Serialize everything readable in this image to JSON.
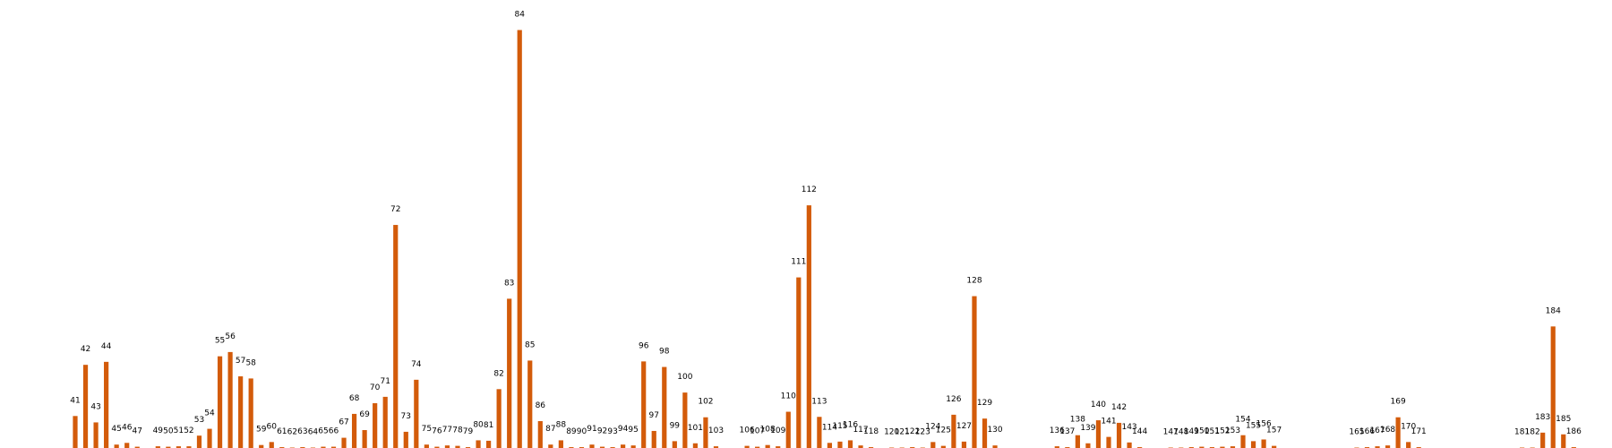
{
  "colors": {
    "bar": "#d35b0a",
    "background": "#ffffff"
  },
  "chart_data": {
    "type": "bar",
    "title": "",
    "xlabel": "",
    "ylabel": "",
    "grid": false,
    "legend": "none",
    "x": [
      41,
      42,
      43,
      44,
      45,
      46,
      47,
      49,
      50,
      51,
      52,
      53,
      54,
      55,
      56,
      57,
      58,
      59,
      60,
      61,
      62,
      63,
      64,
      65,
      66,
      67,
      68,
      69,
      70,
      71,
      72,
      73,
      74,
      75,
      76,
      77,
      78,
      79,
      80,
      81,
      82,
      83,
      84,
      85,
      86,
      87,
      88,
      89,
      90,
      91,
      92,
      93,
      94,
      95,
      96,
      97,
      98,
      99,
      100,
      101,
      102,
      103,
      106,
      107,
      108,
      109,
      110,
      111,
      112,
      113,
      114,
      115,
      116,
      117,
      118,
      120,
      121,
      122,
      123,
      124,
      125,
      126,
      127,
      128,
      129,
      130,
      136,
      137,
      138,
      139,
      140,
      141,
      142,
      143,
      144,
      147,
      148,
      149,
      150,
      151,
      152,
      153,
      154,
      155,
      156,
      157,
      165,
      166,
      167,
      168,
      169,
      170,
      171,
      181,
      182,
      183,
      184,
      185,
      186
    ],
    "values": [
      7.5,
      19.5,
      6,
      20.2,
      0.8,
      1.2,
      0.3,
      0.4,
      0.3,
      0.4,
      0.4,
      2.9,
      4.5,
      21.5,
      22.5,
      16.8,
      16.3,
      0.7,
      1.4,
      0.2,
      0.1,
      0.2,
      0.1,
      0.3,
      0.3,
      2.4,
      8,
      4.2,
      10.5,
      12,
      52.3,
      3.8,
      16,
      0.8,
      0.3,
      0.6,
      0.5,
      0.2,
      1.8,
      1.7,
      13.8,
      35,
      98,
      20.5,
      6.3,
      0.8,
      1.8,
      0.2,
      0.2,
      0.8,
      0.3,
      0.2,
      0.8,
      0.6,
      20.3,
      4,
      19,
      1.6,
      13,
      1.1,
      7.2,
      0.4,
      0.5,
      0.3,
      0.7,
      0.4,
      8.5,
      40,
      56.9,
      7.3,
      1.2,
      1.5,
      1.8,
      0.6,
      0.2,
      0.1,
      0.1,
      0.2,
      0.1,
      1.4,
      0.5,
      7.8,
      1.5,
      35.6,
      6.9,
      0.6,
      0.4,
      0.2,
      3,
      1.1,
      6.5,
      2.6,
      5.9,
      1.3,
      0.2,
      0.1,
      0.1,
      0.2,
      0.3,
      0.2,
      0.3,
      0.4,
      3,
      1.6,
      2,
      0.5,
      0.1,
      0.2,
      0.4,
      0.6,
      7.2,
      1.4,
      0.2,
      0.1,
      0.1,
      3.6,
      28.5,
      3.2,
      0.2
    ],
    "ylim": [
      0,
      100
    ]
  }
}
